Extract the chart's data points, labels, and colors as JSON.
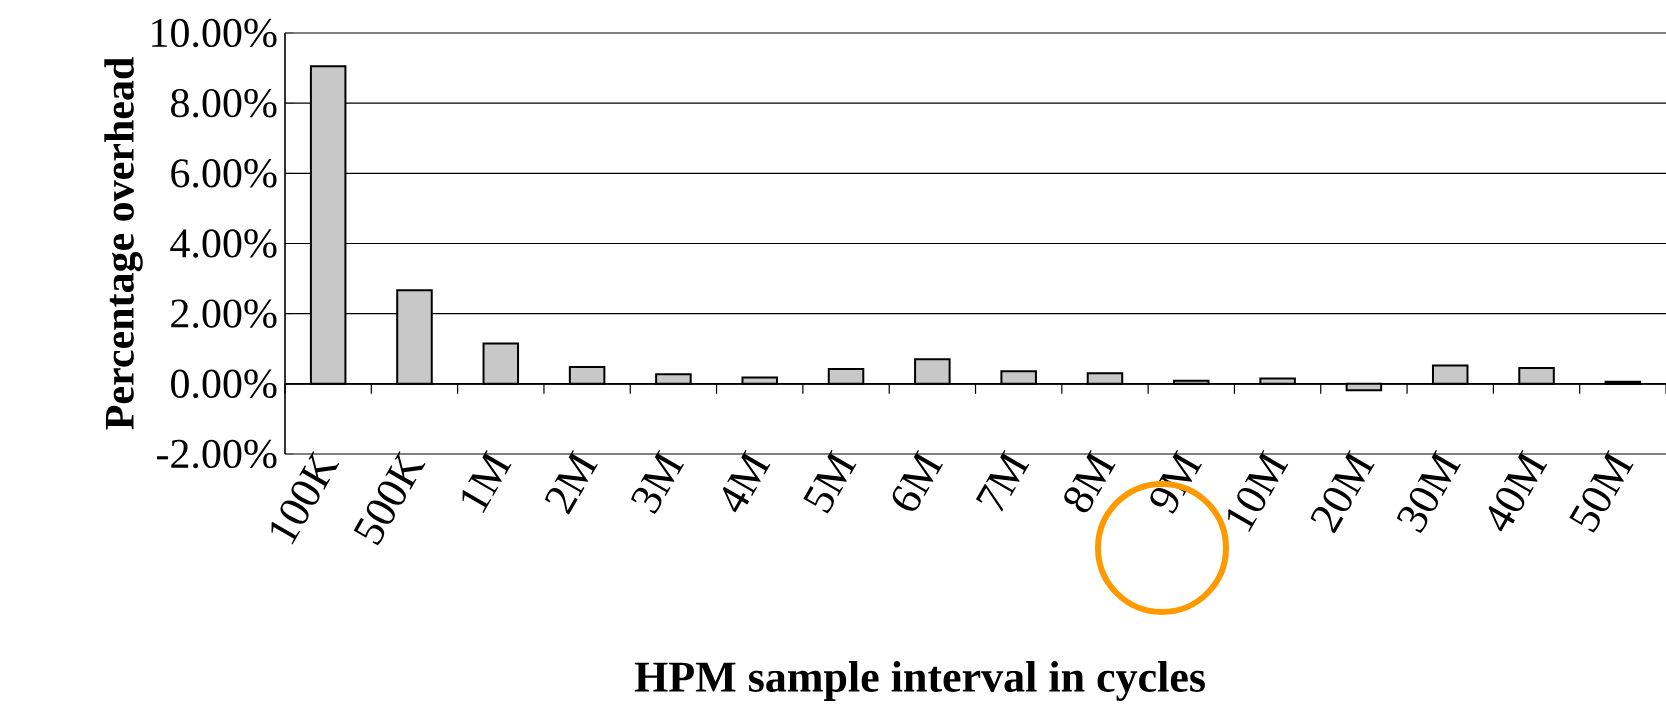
{
  "chart_data": {
    "type": "bar",
    "xlabel": "HPM sample interval in cycles",
    "ylabel": "Percentage overhead",
    "categories": [
      "100K",
      "500K",
      "1M",
      "2M",
      "3M",
      "4M",
      "5M",
      "6M",
      "7M",
      "8M",
      "9M",
      "10M",
      "20M",
      "30M",
      "40M",
      "50M"
    ],
    "values": [
      9.05,
      2.67,
      1.15,
      0.48,
      0.27,
      0.18,
      0.42,
      0.7,
      0.36,
      0.3,
      0.09,
      0.15,
      -0.18,
      0.52,
      0.45,
      0.06
    ],
    "color": "#c8c8c8",
    "ylim": [
      -2,
      10
    ],
    "yticks": [
      {
        "value": -2,
        "label": "-2.00%"
      },
      {
        "value": 0,
        "label": "0.00%"
      },
      {
        "value": 2,
        "label": "2.00%"
      },
      {
        "value": 4,
        "label": "4.00%"
      },
      {
        "value": 6,
        "label": "6.00%"
      },
      {
        "value": 8,
        "label": "8.00%"
      },
      {
        "value": 10,
        "label": "10.00%"
      }
    ],
    "grid": "y"
  }
}
